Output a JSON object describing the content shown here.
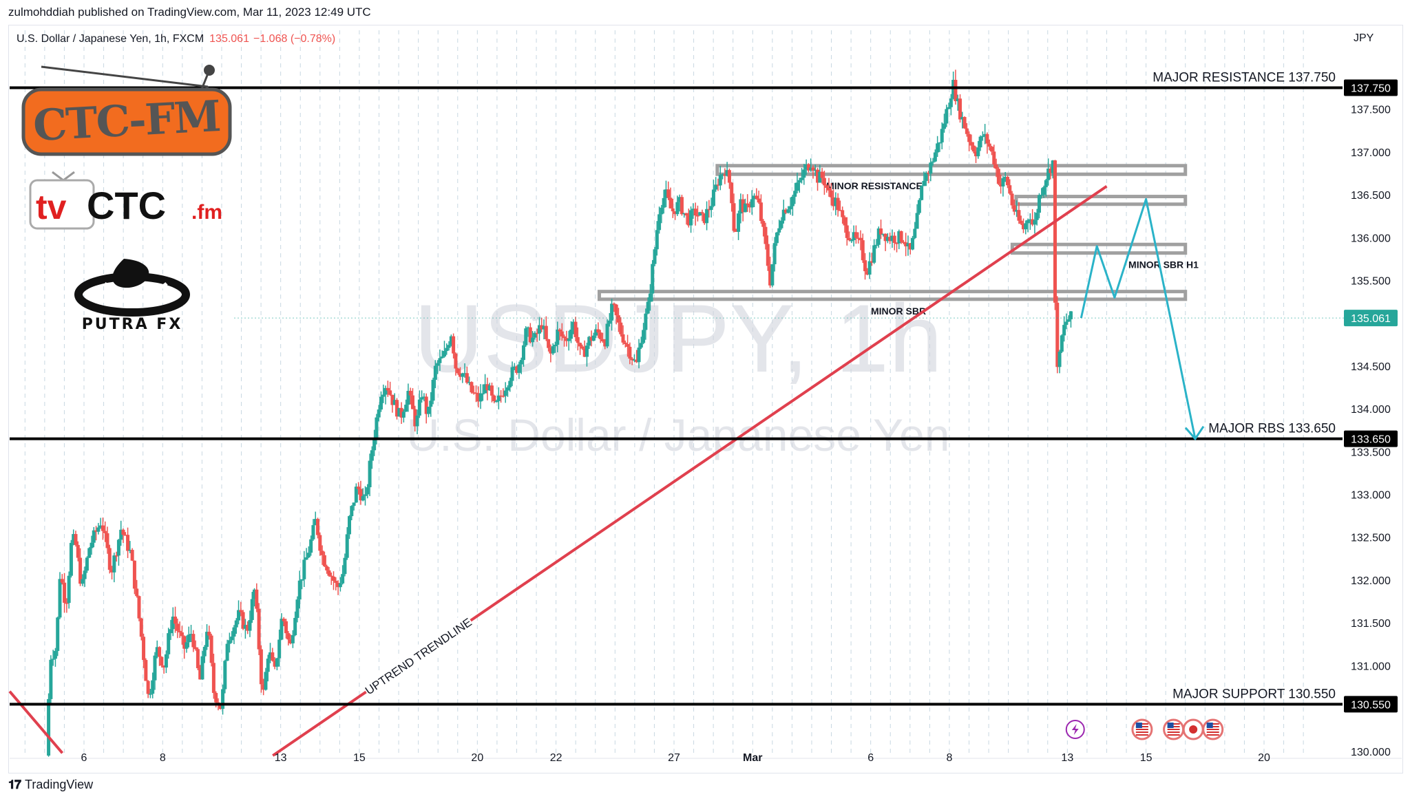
{
  "publication": "zulmohddiah published on TradingView.com, Mar 11, 2023 12:49 UTC",
  "symbol": {
    "name": "U.S. Dollar / Japanese Yen, 1h, FXCM",
    "price": "135.061",
    "change": "−1.068 (−0.78%)"
  },
  "watermark": {
    "ticker": "USDJPY, 1h",
    "description": "U.S. Dollar / Japanese Yen"
  },
  "footer": {
    "brand": "TradingView"
  },
  "logos": {
    "ctc": "CTC-FM",
    "tvctc_a": "tv",
    "tvctc_b": "CTC",
    "tvctc_c": ".fm",
    "putra": "PUTRA FX"
  },
  "colors": {
    "up": "#26a69a",
    "down": "#ef5350",
    "trendline": "#e0404e",
    "projection": "#2ab3c8",
    "level": "#000000",
    "zone": "#a0a0a0"
  },
  "chart_data": {
    "type": "candlestick",
    "currency": "JPY",
    "ylim": [
      129.95,
      138.1
    ],
    "y_ticks": [
      {
        "value": 137.5,
        "label": "137.500"
      },
      {
        "value": 137.0,
        "label": "137.000"
      },
      {
        "value": 136.5,
        "label": "136.500"
      },
      {
        "value": 136.0,
        "label": "136.000"
      },
      {
        "value": 135.5,
        "label": "135.500"
      },
      {
        "value": 134.5,
        "label": "134.500"
      },
      {
        "value": 134.0,
        "label": "134.000"
      },
      {
        "value": 133.5,
        "label": "133.500"
      },
      {
        "value": 133.0,
        "label": "133.000"
      },
      {
        "value": 132.5,
        "label": "132.500"
      },
      {
        "value": 132.0,
        "label": "132.000"
      },
      {
        "value": 131.5,
        "label": "131.500"
      },
      {
        "value": 131.0,
        "label": "131.000"
      },
      {
        "value": 130.0,
        "label": "130.000"
      }
    ],
    "x_ticks": [
      {
        "t": 2,
        "label": "6"
      },
      {
        "t": 4,
        "label": "8"
      },
      {
        "t": 7,
        "label": "13"
      },
      {
        "t": 9,
        "label": "15"
      },
      {
        "t": 12,
        "label": "20"
      },
      {
        "t": 14,
        "label": "22"
      },
      {
        "t": 17,
        "label": "27"
      },
      {
        "t": 19,
        "label": "Mar"
      },
      {
        "t": 22,
        "label": "6"
      },
      {
        "t": 24,
        "label": "8"
      },
      {
        "t": 27,
        "label": "13"
      },
      {
        "t": 29,
        "label": "15"
      },
      {
        "t": 32,
        "label": "20"
      }
    ],
    "price_path": [
      [
        1.1,
        129.95
      ],
      [
        1.2,
        131.1
      ],
      [
        1.35,
        131.2
      ],
      [
        1.45,
        132.1
      ],
      [
        1.6,
        131.7
      ],
      [
        1.75,
        132.5
      ],
      [
        1.85,
        132.4
      ],
      [
        2.0,
        131.9
      ],
      [
        2.2,
        132.4
      ],
      [
        2.5,
        132.7
      ],
      [
        2.75,
        132.1
      ],
      [
        3.0,
        132.6
      ],
      [
        3.25,
        132.3
      ],
      [
        3.5,
        131.4
      ],
      [
        3.7,
        130.6
      ],
      [
        3.9,
        131.2
      ],
      [
        4.1,
        131.0
      ],
      [
        4.3,
        131.6
      ],
      [
        4.6,
        131.2
      ],
      [
        4.8,
        131.4
      ],
      [
        5.0,
        130.8
      ],
      [
        5.2,
        131.5
      ],
      [
        5.35,
        130.7
      ],
      [
        5.55,
        130.5
      ],
      [
        5.7,
        131.3
      ],
      [
        6.0,
        131.6
      ],
      [
        6.2,
        131.4
      ],
      [
        6.4,
        131.9
      ],
      [
        6.6,
        130.6
      ],
      [
        6.75,
        131.2
      ],
      [
        6.9,
        130.9
      ],
      [
        7.1,
        131.6
      ],
      [
        7.3,
        131.2
      ],
      [
        7.5,
        131.9
      ],
      [
        7.8,
        132.4
      ],
      [
        7.95,
        132.7
      ],
      [
        8.1,
        132.3
      ],
      [
        8.3,
        132.1
      ],
      [
        8.5,
        131.9
      ],
      [
        8.65,
        132.1
      ],
      [
        8.8,
        132.7
      ],
      [
        9.0,
        133.1
      ],
      [
        9.2,
        132.9
      ],
      [
        9.4,
        133.6
      ],
      [
        9.6,
        134.2
      ],
      [
        9.75,
        134.3
      ],
      [
        9.9,
        134.1
      ],
      [
        10.1,
        133.9
      ],
      [
        10.3,
        134.2
      ],
      [
        10.5,
        133.8
      ],
      [
        10.65,
        134.2
      ],
      [
        10.8,
        133.9
      ],
      [
        11.0,
        134.5
      ],
      [
        11.2,
        134.6
      ],
      [
        11.4,
        134.9
      ],
      [
        11.5,
        134.5
      ],
      [
        11.7,
        134.4
      ],
      [
        11.9,
        134.2
      ],
      [
        12.1,
        134.1
      ],
      [
        12.3,
        134.3
      ],
      [
        12.5,
        134.0
      ],
      [
        12.7,
        134.2
      ],
      [
        12.9,
        134.4
      ],
      [
        13.1,
        134.5
      ],
      [
        13.3,
        134.9
      ],
      [
        13.5,
        134.8
      ],
      [
        13.7,
        135.0
      ],
      [
        13.9,
        134.6
      ],
      [
        14.1,
        134.9
      ],
      [
        14.3,
        134.8
      ],
      [
        14.5,
        135.0
      ],
      [
        14.7,
        134.6
      ],
      [
        14.9,
        134.8
      ],
      [
        15.1,
        134.9
      ],
      [
        15.3,
        134.8
      ],
      [
        15.5,
        135.2
      ],
      [
        15.7,
        134.9
      ],
      [
        15.9,
        134.7
      ],
      [
        16.1,
        134.5
      ],
      [
        16.2,
        134.8
      ],
      [
        16.4,
        135.2
      ],
      [
        16.55,
        135.8
      ],
      [
        16.7,
        136.4
      ],
      [
        16.85,
        136.5
      ],
      [
        17.0,
        136.3
      ],
      [
        17.2,
        136.4
      ],
      [
        17.4,
        136.2
      ],
      [
        17.6,
        136.3
      ],
      [
        17.8,
        136.2
      ],
      [
        18.0,
        136.4
      ],
      [
        18.2,
        136.7
      ],
      [
        18.35,
        136.8
      ],
      [
        18.5,
        136.6
      ],
      [
        18.6,
        136.0
      ],
      [
        18.75,
        136.4
      ],
      [
        18.9,
        136.3
      ],
      [
        19.05,
        136.5
      ],
      [
        19.2,
        136.4
      ],
      [
        19.35,
        136.0
      ],
      [
        19.5,
        135.5
      ],
      [
        19.65,
        136.0
      ],
      [
        19.8,
        136.3
      ],
      [
        20.0,
        136.4
      ],
      [
        20.2,
        136.6
      ],
      [
        20.4,
        136.8
      ],
      [
        20.55,
        136.9
      ],
      [
        20.7,
        136.7
      ],
      [
        20.85,
        136.7
      ],
      [
        21.0,
        136.5
      ],
      [
        21.2,
        136.4
      ],
      [
        21.4,
        136.1
      ],
      [
        21.6,
        136.0
      ],
      [
        21.8,
        135.9
      ],
      [
        21.95,
        135.6
      ],
      [
        22.1,
        135.8
      ],
      [
        22.3,
        136.1
      ],
      [
        22.5,
        136.0
      ],
      [
        22.7,
        136.0
      ],
      [
        22.9,
        136.0
      ],
      [
        23.05,
        135.8
      ],
      [
        23.2,
        136.1
      ],
      [
        23.4,
        136.7
      ],
      [
        23.55,
        136.8
      ],
      [
        23.7,
        137.0
      ],
      [
        23.85,
        137.2
      ],
      [
        24.0,
        137.5
      ],
      [
        24.15,
        137.8
      ],
      [
        24.3,
        137.5
      ],
      [
        24.45,
        137.3
      ],
      [
        24.6,
        137.1
      ],
      [
        24.75,
        137.0
      ],
      [
        24.9,
        137.2
      ],
      [
        25.05,
        137.1
      ],
      [
        25.2,
        136.9
      ],
      [
        25.35,
        136.6
      ],
      [
        25.5,
        136.7
      ],
      [
        25.65,
        136.4
      ],
      [
        25.8,
        136.2
      ],
      [
        25.95,
        136.1
      ],
      [
        26.1,
        136.3
      ],
      [
        26.2,
        136.1
      ],
      [
        26.35,
        136.5
      ],
      [
        26.5,
        136.7
      ],
      [
        26.6,
        136.8
      ],
      [
        26.7,
        136.9
      ],
      [
        26.75,
        135.0
      ],
      [
        26.82,
        134.4
      ],
      [
        26.9,
        134.8
      ],
      [
        27.0,
        135.0
      ],
      [
        27.1,
        135.06
      ]
    ],
    "levels": [
      {
        "label": "MAJOR RESISTANCE 137.750",
        "value": 137.75,
        "badge": "137.750"
      },
      {
        "label": "MAJOR RBS 133.650",
        "value": 133.65,
        "badge": "133.650"
      },
      {
        "label": "MAJOR SUPPORT 130.550",
        "value": 130.55,
        "badge": "130.550"
      }
    ],
    "current_price_badge": {
      "value": 135.061,
      "label": "135.061"
    },
    "zones": [
      {
        "label": "MINOR RESISTANCE",
        "t0": 18.1,
        "t1": 30.0,
        "low": 136.74,
        "high": 136.84
      },
      {
        "label": "",
        "t0": 25.7,
        "t1": 30.0,
        "low": 136.39,
        "high": 136.48
      },
      {
        "label": "MINOR SBR H1",
        "t0": 25.6,
        "t1": 30.0,
        "low": 135.82,
        "high": 135.92
      },
      {
        "label": "MINOR SBR",
        "t0": 15.1,
        "t1": 30.0,
        "low": 135.28,
        "high": 135.37
      }
    ],
    "trendline": {
      "label": "UPTREND TRENDLINE",
      "t0": 6.8,
      "p0": 129.95,
      "t1": 28.0,
      "p1": 136.6
    },
    "pre_trendline": {
      "t0": 0.0,
      "p0": 130.7,
      "t1": 1.45,
      "p1": 129.98
    },
    "projection": [
      [
        27.35,
        135.06
      ],
      [
        27.75,
        135.9
      ],
      [
        28.2,
        135.3
      ],
      [
        29.0,
        136.45
      ],
      [
        30.25,
        133.65
      ]
    ],
    "event_markers": [
      {
        "type": "flash",
        "t": 27.2
      },
      {
        "type": "us",
        "t": 28.9
      },
      {
        "type": "us",
        "t": 29.7
      },
      {
        "type": "jp",
        "t": 30.2
      },
      {
        "type": "us",
        "t": 30.7
      }
    ]
  }
}
